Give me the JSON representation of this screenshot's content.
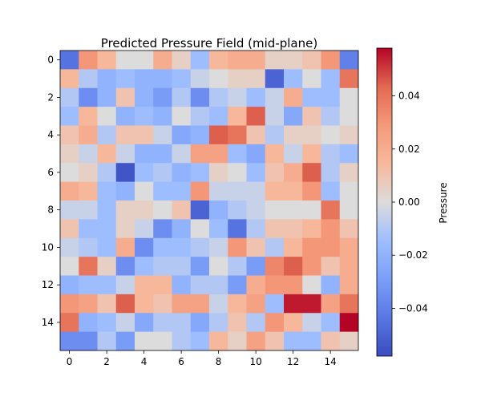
{
  "chart_data": {
    "type": "heatmap",
    "title": "Predicted Pressure Field (mid-plane)",
    "xlabel": "",
    "ylabel": "",
    "colorbar_label": "Pressure",
    "colormap": "coolwarm",
    "vmin": -0.058,
    "vmax": 0.058,
    "x_ticks": [
      0,
      2,
      4,
      6,
      8,
      10,
      12,
      14
    ],
    "y_ticks": [
      0,
      2,
      4,
      6,
      8,
      10,
      12,
      14
    ],
    "colorbar_ticks": [
      -0.04,
      -0.02,
      0.0,
      0.02,
      0.04
    ],
    "colorbar_tick_labels": [
      "−0.04",
      "−0.02",
      "0.00",
      "0.02",
      "0.04"
    ],
    "grid": false,
    "values": [
      [
        -0.045,
        0.03,
        0.015,
        0.0,
        0.0,
        0.02,
        0.005,
        -0.015,
        0.015,
        0.02,
        0.02,
        0.005,
        0.005,
        0.01,
        0.03,
        -0.04
      ],
      [
        0.015,
        -0.01,
        -0.02,
        -0.015,
        -0.02,
        -0.02,
        -0.015,
        -0.005,
        0.0,
        0.005,
        0.005,
        -0.05,
        -0.015,
        0.0,
        -0.015,
        0.04
      ],
      [
        -0.01,
        -0.035,
        -0.02,
        0.01,
        -0.02,
        -0.03,
        -0.01,
        -0.035,
        -0.01,
        -0.005,
        -0.015,
        -0.005,
        0.02,
        -0.015,
        -0.015,
        0.0
      ],
      [
        -0.015,
        0.015,
        0.0,
        -0.02,
        -0.015,
        -0.02,
        0.0,
        -0.01,
        -0.015,
        0.015,
        0.045,
        -0.005,
        -0.025,
        0.01,
        -0.01,
        0.0
      ],
      [
        0.01,
        0.02,
        -0.01,
        0.01,
        0.01,
        -0.005,
        -0.025,
        -0.02,
        0.045,
        0.04,
        0.01,
        -0.01,
        0.005,
        0.005,
        0.0,
        0.005
      ],
      [
        0.005,
        -0.005,
        0.015,
        -0.005,
        -0.02,
        -0.02,
        -0.005,
        0.025,
        0.025,
        -0.015,
        -0.025,
        0.015,
        -0.005,
        0.015,
        -0.01,
        -0.015
      ],
      [
        0.0,
        0.005,
        -0.01,
        -0.055,
        -0.015,
        -0.01,
        -0.02,
        -0.015,
        0.005,
        0.0,
        -0.015,
        0.01,
        0.02,
        0.045,
        -0.01,
        0.005
      ],
      [
        0.02,
        0.015,
        -0.015,
        -0.02,
        0.0,
        -0.015,
        -0.015,
        0.03,
        -0.005,
        -0.005,
        -0.005,
        0.015,
        0.015,
        0.03,
        -0.015,
        0.0
      ],
      [
        -0.005,
        -0.005,
        -0.015,
        0.005,
        0.005,
        0.0,
        0.01,
        -0.05,
        -0.02,
        -0.01,
        -0.005,
        0.0,
        0.0,
        0.0,
        0.04,
        0.0
      ],
      [
        0.01,
        -0.015,
        -0.015,
        0.005,
        -0.005,
        -0.035,
        -0.02,
        0.0,
        -0.015,
        -0.045,
        -0.01,
        0.01,
        0.01,
        0.015,
        0.03,
        0.01
      ],
      [
        -0.005,
        -0.01,
        -0.015,
        0.02,
        -0.035,
        -0.015,
        -0.015,
        -0.01,
        -0.005,
        0.03,
        0.01,
        -0.01,
        0.015,
        0.03,
        0.03,
        0.02
      ],
      [
        0.0,
        0.04,
        0.005,
        -0.035,
        -0.015,
        -0.01,
        -0.01,
        -0.03,
        0.0,
        -0.01,
        -0.03,
        0.035,
        0.045,
        0.03,
        0.01,
        0.02
      ],
      [
        -0.02,
        -0.015,
        -0.015,
        -0.005,
        0.015,
        0.015,
        -0.02,
        -0.01,
        -0.01,
        -0.03,
        0.02,
        0.03,
        0.03,
        0.0,
        -0.02,
        0.02
      ],
      [
        0.03,
        0.025,
        0.01,
        0.045,
        0.015,
        0.01,
        0.025,
        0.025,
        -0.005,
        0.015,
        0.025,
        -0.015,
        0.055,
        0.055,
        0.025,
        0.04
      ],
      [
        0.04,
        -0.02,
        -0.015,
        -0.005,
        -0.025,
        -0.01,
        -0.01,
        -0.025,
        -0.01,
        0.01,
        -0.01,
        0.03,
        0.015,
        -0.005,
        -0.015,
        0.058
      ],
      [
        -0.035,
        -0.035,
        -0.01,
        -0.03,
        0.0,
        0.0,
        -0.01,
        -0.015,
        0.015,
        0.005,
        0.025,
        0.01,
        -0.015,
        -0.015,
        0.01,
        0.005
      ]
    ]
  }
}
